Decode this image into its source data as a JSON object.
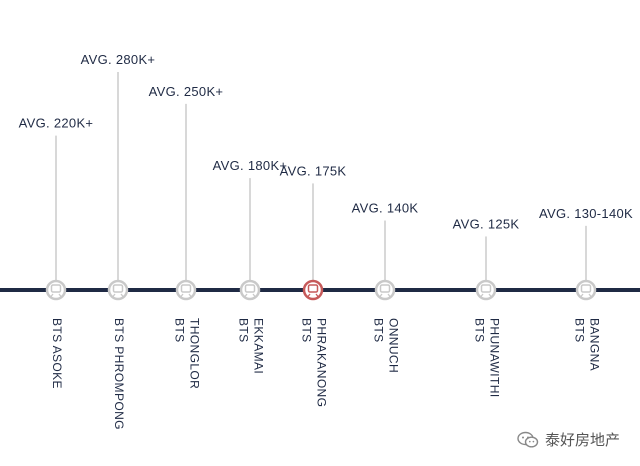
{
  "chart_data": {
    "type": "timeline",
    "title": "",
    "ylabel": "",
    "xlabel": "",
    "grid": false,
    "colors": {
      "line": "#1f2a44",
      "stem": "#d8d8d8",
      "marker": "#c9c9c9",
      "highlight": "#c65a5a",
      "text": "#1f2a44"
    },
    "stations": [
      {
        "name_lines": [
          "BTS ASOKE"
        ],
        "price_label": "AVG. 220K+",
        "value": 220,
        "highlight": false
      },
      {
        "name_lines": [
          "BTS PHROMPONG"
        ],
        "price_label": "AVG. 280K+",
        "value": 280,
        "highlight": false
      },
      {
        "name_lines": [
          "BTS",
          "THONGLOR"
        ],
        "price_label": "AVG. 250K+",
        "value": 250,
        "highlight": false
      },
      {
        "name_lines": [
          "BTS",
          "EKKAMAI"
        ],
        "price_label": "AVG. 180K+",
        "value": 180,
        "highlight": false
      },
      {
        "name_lines": [
          "BTS",
          "PHRAKANONG"
        ],
        "price_label": "AVG. 175K",
        "value": 175,
        "highlight": true
      },
      {
        "name_lines": [
          "BTS",
          "ONNUCH"
        ],
        "price_label": "AVG. 140K",
        "value": 140,
        "highlight": false
      },
      {
        "name_lines": [
          "BTS",
          "PHUNAWITHI"
        ],
        "price_label": "AVG. 125K",
        "value": 125,
        "highlight": false
      },
      {
        "name_lines": [
          "BTS",
          "BANGNA"
        ],
        "price_label": "AVG. 130-140K",
        "value": 135,
        "highlight": false
      }
    ]
  },
  "watermark": {
    "text": "泰好房地产",
    "icon": "wechat-icon"
  }
}
